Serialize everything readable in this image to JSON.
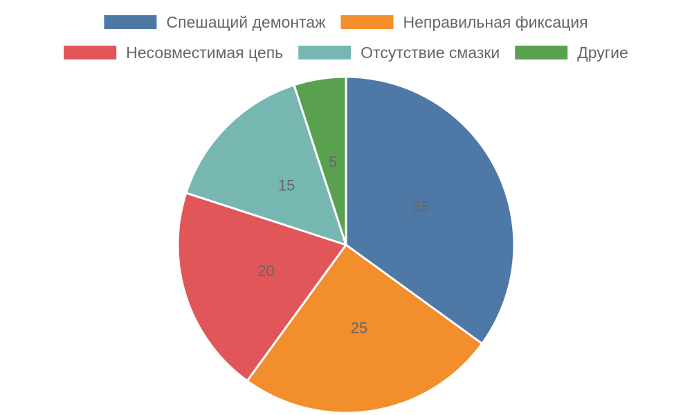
{
  "chart_data": {
    "type": "pie",
    "title": "",
    "legend_position": "top",
    "categories": [
      "Спешащий демонтаж",
      "Неправильная фиксация",
      "Несовместимая цепь",
      "Отсутствие смазки",
      "Другие"
    ],
    "values": [
      35,
      25,
      20,
      15,
      5
    ],
    "value_labels": [
      "35",
      "25",
      "20",
      "15",
      "5"
    ],
    "colors": [
      "#4e79a7",
      "#f28e2b",
      "#e15759",
      "#76b7b2",
      "#59a14f"
    ]
  }
}
